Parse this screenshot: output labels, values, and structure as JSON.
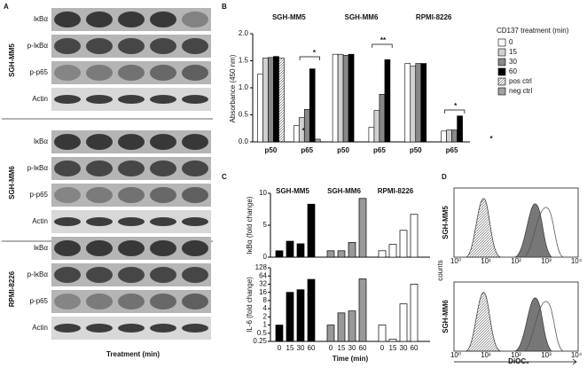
{
  "panel_labels": [
    "A",
    "B",
    "C",
    "D"
  ],
  "blots": {
    "groups": [
      {
        "cell_line": "SGH-MM5",
        "rows": [
          "IκBα",
          "p-IκBα",
          "p-p65",
          "Actin"
        ]
      },
      {
        "cell_line": "SGH-MM6",
        "rows": [
          "IκBα",
          "p-IκBα",
          "p-p65",
          "Actin"
        ]
      },
      {
        "cell_line": "RPMI-8226",
        "rows": [
          "IκBα",
          "p-IκBα",
          "p-p65",
          "Actin"
        ]
      }
    ],
    "x_label": "Treatment (min)"
  },
  "chart_data": [
    {
      "type": "bar",
      "group_titles": [
        "SGH-MM5",
        "SGH-MM6",
        "RPMI-8226"
      ],
      "categories": [
        "p50",
        "p65",
        "p50",
        "p65",
        "p50",
        "p65"
      ],
      "y_label": "Absorbance (450 nm)",
      "legend_title": "CD137 treatment (min)",
      "ylim": [
        0,
        2
      ],
      "yticks": [
        {
          "value": 0,
          "label": "0.0"
        },
        {
          "value": 0.5,
          "label": "0.5"
        },
        {
          "value": 1,
          "label": "1.0"
        },
        {
          "value": 1.5,
          "label": "1.5"
        },
        {
          "value": 2,
          "label": "2.0"
        }
      ],
      "annotations": [
        "*",
        "*",
        "**",
        "*",
        "*"
      ],
      "series": [
        {
          "name": "0",
          "color": "#ffffff",
          "values": [
            1.25,
            0.3,
            1.62,
            0.27,
            1.45,
            0.2
          ]
        },
        {
          "name": "15",
          "color": "#d0d0d0",
          "values": [
            1.55,
            0.45,
            1.62,
            0.58,
            1.4,
            0.22
          ]
        },
        {
          "name": "30",
          "color": "#888888",
          "values": [
            1.56,
            0.6,
            1.6,
            0.88,
            1.45,
            0.22
          ]
        },
        {
          "name": "60",
          "color": "#000000",
          "values": [
            1.58,
            1.35,
            1.62,
            1.52,
            1.45,
            0.48
          ]
        },
        {
          "name": "pos ctrl",
          "color": "#e8e8e8",
          "values": [
            1.55,
            null,
            null,
            null,
            null,
            null
          ]
        },
        {
          "name": "neg ctrl",
          "color": "#a0a0a0",
          "values": [
            null,
            0.05,
            null,
            null,
            null,
            null
          ]
        }
      ]
    },
    {
      "type": "bar",
      "y_label": "IκBα  (fold change)",
      "ylim": [
        0,
        10
      ],
      "yticks": [
        0,
        5,
        10
      ],
      "series": [
        {
          "name": "SGH-MM5",
          "color": "#000000",
          "values": [
            1,
            2.5,
            2.1,
            8.3
          ]
        },
        {
          "name": "SGH-MM6",
          "color": "#999999",
          "values": [
            1,
            1,
            2.3,
            9.2
          ]
        },
        {
          "name": "RPMI-8226",
          "color": "#ffffff",
          "values": [
            1,
            2,
            4.2,
            6.7
          ]
        }
      ]
    },
    {
      "type": "bar",
      "log_scale": true,
      "y_label": "IL-6  (fold change)",
      "x_label": "Time (min)",
      "categories": [
        "0",
        "15",
        "30",
        "60"
      ],
      "ylim": [
        0.25,
        128
      ],
      "yticks": [
        0.25,
        0.5,
        1,
        2,
        4,
        8,
        16,
        32,
        64,
        128
      ],
      "series": [
        {
          "color": "#000000",
          "values": [
            1,
            16,
            20,
            48
          ]
        },
        {
          "color": "#999999",
          "values": [
            1,
            2.8,
            3.3,
            50
          ]
        },
        {
          "color": "#ffffff",
          "values": [
            1,
            0.3,
            6,
            32
          ]
        }
      ]
    }
  ],
  "flow": {
    "panels": [
      "SGH-MM5",
      "SGH-MM6"
    ],
    "y_label": "counts",
    "x_label": "DiOC₆",
    "xticks": [
      "10⁰",
      "10¹",
      "10²",
      "10³",
      "10⁴"
    ]
  }
}
